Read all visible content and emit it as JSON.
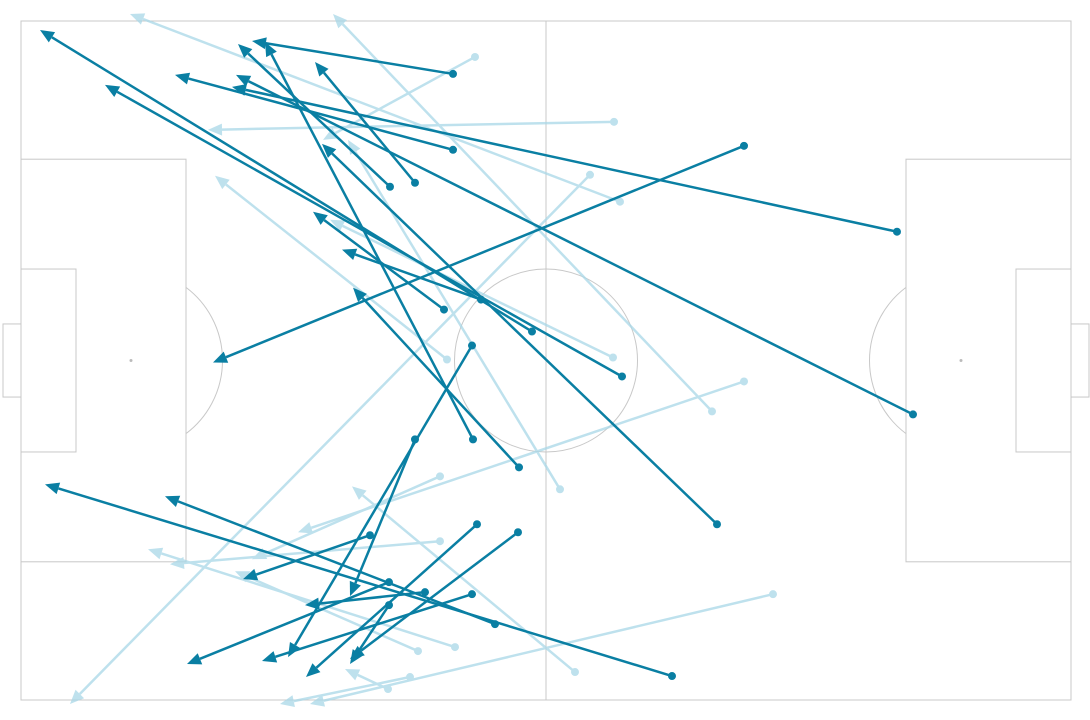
{
  "chart_data": {
    "type": "pass_map",
    "xlim": [
      0,
      105
    ],
    "ylim": [
      0,
      68
    ],
    "series": [
      {
        "color": "#a9d8e8",
        "x": [
          45.4,
          59.3,
          59.9,
          56.9,
          69.1,
          59.2,
          53.9,
          72.3,
          41.9,
          41.9,
          43.4,
          39.7,
          38.9,
          36.7,
          75.2,
          55.4,
          42.6
        ],
        "y": [
          3.6,
          10.1,
          18.1,
          15.4,
          39.1,
          33.7,
          46.9,
          36.1,
          45.6,
          52.1,
          62.7,
          63.1,
          65.7,
          66.9,
          57.4,
          65.2,
          33.9
        ],
        "x_end": [
          30.2,
          18.7,
          10.9,
          4.9,
          31.2,
          30.9,
          32.7,
          27.7,
          23.1,
          14.9,
          12.7,
          21.4,
          25.9,
          32.4,
          28.9,
          33.1,
          19.4
        ],
        "y_end": [
          11.9,
          10.9,
          -0.7,
          68.4,
          -0.7,
          19.9,
          11.9,
          51.2,
          53.9,
          54.4,
          52.9,
          55.1,
          68.4,
          64.9,
          68.4,
          46.6,
          15.5
        ]
      },
      {
        "color": "#0a7fa3",
        "x": [
          43.2,
          43.2,
          87.6,
          36.9,
          39.4,
          72.3,
          89.2,
          46.0,
          51.1,
          60.1,
          42.3,
          45.2,
          49.8,
          69.6,
          65.1,
          47.4,
          34.9,
          36.8,
          45.1,
          39.4,
          45.6,
          49.7,
          45.1,
          40.4,
          36.8
        ],
        "y": [
          5.3,
          12.9,
          21.1,
          16.6,
          16.2,
          12.5,
          39.4,
          27.9,
          31.1,
          35.6,
          28.9,
          41.9,
          44.7,
          50.4,
          65.6,
          60.4,
          51.5,
          56.2,
          32.5,
          41.9,
          50.4,
          51.2,
          57.4,
          57.2,
          58.5
        ],
        "x_end": [
          23.1,
          15.4,
          21.1,
          21.7,
          29.4,
          19.2,
          21.5,
          32.1,
          1.9,
          8.4,
          29.2,
          24.4,
          33.2,
          30.1,
          2.4,
          14.4,
          22.2,
          16.6,
          26.7,
          32.9,
          28.5,
          32.9,
          24.1,
          28.4,
          32.9
        ],
        "y_end": [
          2.0,
          5.4,
          6.6,
          2.3,
          4.1,
          34.2,
          5.4,
          22.9,
          0.9,
          6.4,
          19.1,
          2.1,
          26.7,
          12.3,
          46.4,
          47.6,
          55.9,
          64.4,
          63.7,
          57.6,
          65.7,
          63.9,
          64.1,
          58.5,
          64.4
        ]
      }
    ]
  }
}
